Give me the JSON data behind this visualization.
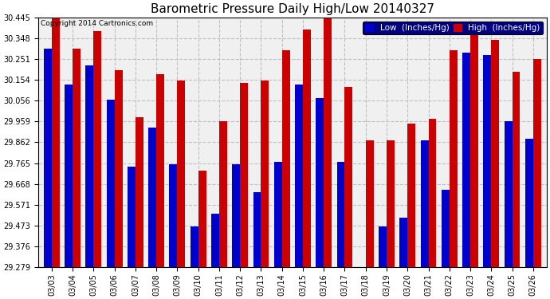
{
  "title": "Barometric Pressure Daily High/Low 20140327",
  "copyright": "Copyright 2014 Cartronics.com",
  "legend_low": "Low  (Inches/Hg)",
  "legend_high": "High  (Inches/Hg)",
  "dates": [
    "03/03",
    "03/04",
    "03/05",
    "03/06",
    "03/07",
    "03/08",
    "03/09",
    "03/10",
    "03/11",
    "03/12",
    "03/13",
    "03/14",
    "03/15",
    "03/16",
    "03/17",
    "03/18",
    "03/19",
    "03/20",
    "03/21",
    "03/22",
    "03/23",
    "03/24",
    "03/25",
    "03/26"
  ],
  "low": [
    30.3,
    30.13,
    30.22,
    30.06,
    29.75,
    29.93,
    29.76,
    29.47,
    29.53,
    29.76,
    29.63,
    29.77,
    30.13,
    30.07,
    29.77,
    29.28,
    29.47,
    29.51,
    29.87,
    29.64,
    30.28,
    30.27,
    29.96,
    29.88
  ],
  "high": [
    30.44,
    30.3,
    30.38,
    30.2,
    29.98,
    30.18,
    30.15,
    29.73,
    29.96,
    30.14,
    30.15,
    30.29,
    30.39,
    30.44,
    30.12,
    29.87,
    29.87,
    29.95,
    29.97,
    30.29,
    30.4,
    30.34,
    30.19,
    30.25
  ],
  "low_color": "#0000cc",
  "high_color": "#cc0000",
  "bg_color": "#ffffff",
  "plot_bg_color": "#f0f0f0",
  "grid_color": "#c0c0c0",
  "ylim_min": 29.279,
  "ylim_max": 30.445,
  "yticks": [
    29.279,
    29.376,
    29.473,
    29.571,
    29.668,
    29.765,
    29.862,
    29.959,
    30.056,
    30.154,
    30.251,
    30.348,
    30.445
  ],
  "bar_width": 0.38,
  "title_fontsize": 11,
  "tick_fontsize": 7,
  "legend_fontsize": 7.5,
  "copyright_fontsize": 6.5
}
